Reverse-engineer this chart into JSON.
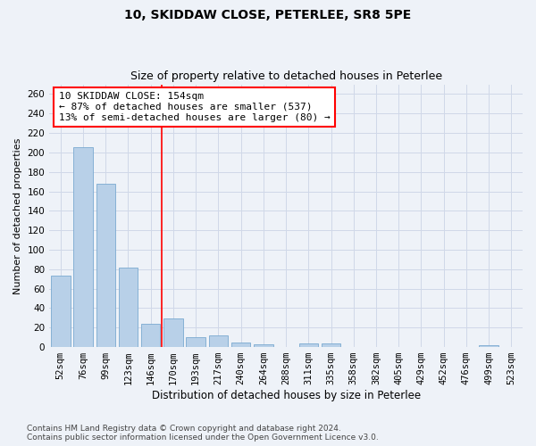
{
  "title1": "10, SKIDDAW CLOSE, PETERLEE, SR8 5PE",
  "title2": "Size of property relative to detached houses in Peterlee",
  "xlabel": "Distribution of detached houses by size in Peterlee",
  "ylabel": "Number of detached properties",
  "categories": [
    "52sqm",
    "76sqm",
    "99sqm",
    "123sqm",
    "146sqm",
    "170sqm",
    "193sqm",
    "217sqm",
    "240sqm",
    "264sqm",
    "288sqm",
    "311sqm",
    "335sqm",
    "358sqm",
    "382sqm",
    "405sqm",
    "429sqm",
    "452sqm",
    "476sqm",
    "499sqm",
    "523sqm"
  ],
  "values": [
    73,
    205,
    168,
    82,
    24,
    29,
    10,
    12,
    5,
    3,
    0,
    4,
    4,
    0,
    0,
    0,
    0,
    0,
    0,
    2,
    0
  ],
  "bar_color": "#b8d0e8",
  "bar_edge_color": "#7aaad0",
  "grid_color": "#d0d8e8",
  "background_color": "#eef2f8",
  "red_line_x": 4.5,
  "annotation_line1": "10 SKIDDAW CLOSE: 154sqm",
  "annotation_line2": "← 87% of detached houses are smaller (537)",
  "annotation_line3": "13% of semi-detached houses are larger (80) →",
  "ylim": [
    0,
    270
  ],
  "yticks": [
    0,
    20,
    40,
    60,
    80,
    100,
    120,
    140,
    160,
    180,
    200,
    220,
    240,
    260
  ],
  "footnote1": "Contains HM Land Registry data © Crown copyright and database right 2024.",
  "footnote2": "Contains public sector information licensed under the Open Government Licence v3.0.",
  "title1_fontsize": 10,
  "title2_fontsize": 9,
  "xlabel_fontsize": 8.5,
  "ylabel_fontsize": 8,
  "tick_fontsize": 7.5,
  "annotation_fontsize": 8,
  "footnote_fontsize": 6.5
}
